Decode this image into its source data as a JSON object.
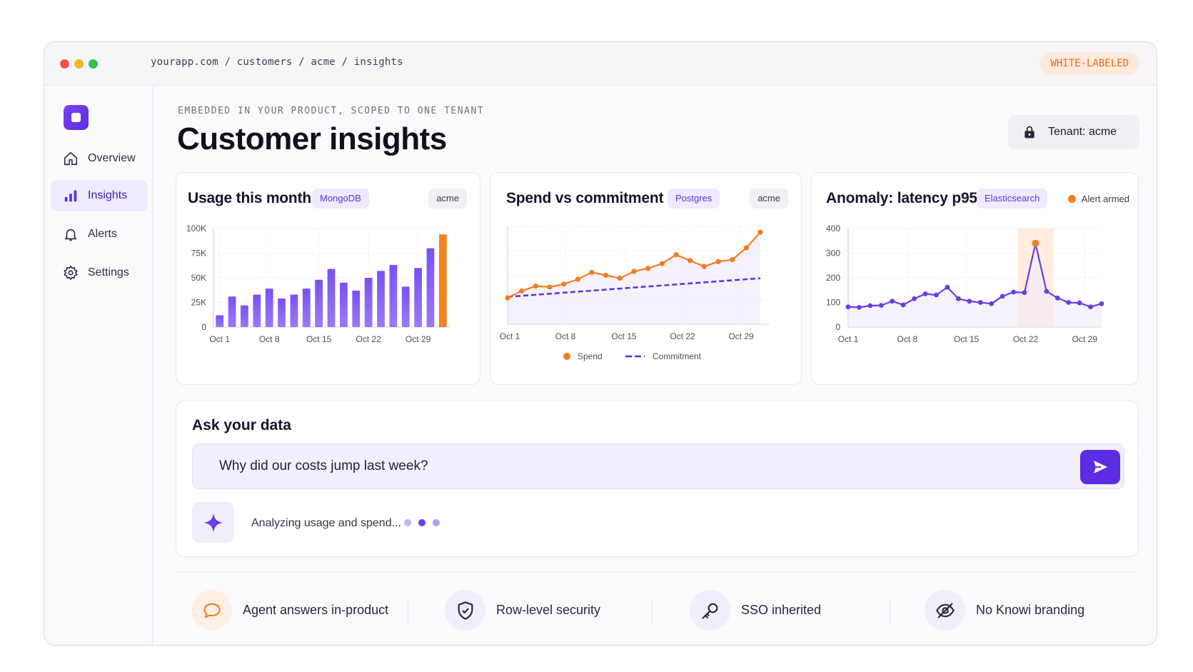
{
  "browser": {
    "url": "yourapp.com / customers / acme / insights",
    "badge": "WHITE-LABELED"
  },
  "sidebar": {
    "items": [
      {
        "label": "Overview",
        "icon": "home-icon"
      },
      {
        "label": "Insights",
        "icon": "bar-chart-icon",
        "active": true
      },
      {
        "label": "Alerts",
        "icon": "bell-icon"
      },
      {
        "label": "Settings",
        "icon": "gear-icon"
      }
    ]
  },
  "header": {
    "eyebrow": "EMBEDDED IN YOUR PRODUCT, SCOPED TO ONE TENANT",
    "title": "Customer insights",
    "tenant_label": "Tenant:",
    "tenant_value": "acme"
  },
  "cards": [
    {
      "title": "Usage this month",
      "source": "MongoDB",
      "tenant": "acme"
    },
    {
      "title": "Spend vs commitment",
      "source": "Postgres",
      "tenant": "acme"
    },
    {
      "title": "Anomaly: latency p95",
      "source": "Elasticsearch",
      "status": "Alert armed"
    }
  ],
  "chart_data": [
    {
      "type": "bar",
      "title": "Usage this month",
      "y_tick_labels": [
        "0",
        "25K",
        "50K",
        "75K",
        "100K"
      ],
      "x_tick_labels": [
        "Oct 1",
        "Oct 8",
        "Oct 15",
        "Oct 22",
        "Oct 29"
      ],
      "ylim": [
        0,
        100000
      ],
      "values": [
        12000,
        31000,
        22000,
        33000,
        39000,
        29000,
        33000,
        39000,
        48000,
        59000,
        45000,
        37000,
        50000,
        57000,
        63000,
        41000,
        60000,
        80000,
        94000
      ],
      "highlight_last": true,
      "colors": {
        "bar": "#7c4ff2",
        "highlight": "#f5821f"
      },
      "grid": true
    },
    {
      "type": "line",
      "title": "Spend vs commitment",
      "x_tick_labels": [
        "Oct 1",
        "Oct 8",
        "Oct 15",
        "Oct 22",
        "Oct 29"
      ],
      "ylim": [
        0,
        100
      ],
      "series": [
        {
          "name": "Spend",
          "color": "#f47c20",
          "values": [
            27,
            34,
            39,
            38,
            41,
            46,
            53,
            50,
            47,
            54,
            57,
            62,
            71,
            65,
            59,
            64,
            66,
            78,
            94
          ]
        },
        {
          "name": "Commitment",
          "color": "#5a2ce3",
          "dashed": true,
          "values": [
            28,
            47
          ]
        }
      ],
      "legend": "bottom",
      "grid": true
    },
    {
      "type": "line",
      "title": "Anomaly: latency p95",
      "y_tick_labels": [
        "0",
        "100",
        "200",
        "300",
        "400"
      ],
      "x_tick_labels": [
        "Oct 1",
        "Oct 8",
        "Oct 15",
        "Oct 22",
        "Oct 29"
      ],
      "ylim": [
        0,
        400
      ],
      "x_range": [
        1,
        31
      ],
      "values": [
        82,
        80,
        87,
        88,
        105,
        90,
        115,
        135,
        130,
        162,
        115,
        105,
        100,
        95,
        125,
        142,
        140,
        340,
        145,
        118,
        100,
        98,
        82,
        95
      ],
      "anomaly_index": 17,
      "colors": {
        "line": "#6a3de8",
        "anomaly": "#f47c20"
      },
      "grid": true
    }
  ],
  "ask": {
    "title": "Ask your data",
    "query": "Why did our costs jump last week?",
    "status": "Analyzing usage and spend..."
  },
  "features": [
    {
      "label": "Agent answers in-product",
      "icon": "chat-bubble-icon"
    },
    {
      "label": "Row-level security",
      "icon": "shield-check-icon"
    },
    {
      "label": "SSO inherited",
      "icon": "key-icon"
    },
    {
      "label": "No Knowi branding",
      "icon": "eye-off-icon"
    }
  ]
}
